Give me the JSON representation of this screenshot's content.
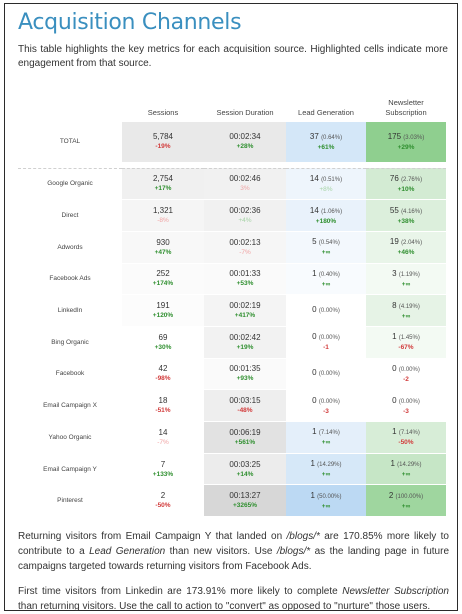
{
  "title": "Acquisition Channels",
  "intro": "This table highlights the key metrics for each acquisition source. Highlighted cells indicate more engagement from that source.",
  "columns": [
    "Sessions",
    "Session Duration",
    "Lead Generation",
    "Newsletter Subscription"
  ],
  "total": {
    "label": "TOTAL",
    "sessions": "5,784",
    "sessions_change": "-19%",
    "duration": "00:02:34",
    "duration_change": "+28%",
    "lead": "37",
    "lead_pct": "(0.64%)",
    "lead_change": "+61%",
    "news": "175",
    "news_pct": "(3.03%)",
    "news_change": "+29%"
  },
  "rows": [
    {
      "label": "Google Organic",
      "sessions": "2,754",
      "s_ch": "+17%",
      "s_cls": "pos",
      "s_bg": "#f0f0f0",
      "duration": "00:02:46",
      "d_ch": "3%",
      "d_cls": "faint-neg",
      "d_bg": "#f1f1f1",
      "lead": "14",
      "lead_pct": "(0.51%)",
      "l_ch": "+8%",
      "l_cls": "faint-pos",
      "l_bg": "#eef5fc",
      "news": "76",
      "news_pct": "(2.76%)",
      "n_ch": "+10%",
      "n_cls": "pos",
      "n_bg": "#d3ebd3"
    },
    {
      "label": "Direct",
      "sessions": "1,321",
      "s_ch": "-8%",
      "s_cls": "faint-neg",
      "s_bg": "#f5f5f5",
      "duration": "00:02:36",
      "d_ch": "+4%",
      "d_cls": "faint-pos",
      "d_bg": "#f1f1f1",
      "lead": "14",
      "lead_pct": "(1.06%)",
      "l_ch": "+180%",
      "l_cls": "pos",
      "l_bg": "#e9f2fb",
      "news": "55",
      "news_pct": "(4.16%)",
      "n_ch": "+38%",
      "n_cls": "pos",
      "n_bg": "#dcefdc"
    },
    {
      "label": "Adwords",
      "sessions": "930",
      "s_ch": "+47%",
      "s_cls": "pos",
      "s_bg": "#f8f8f8",
      "duration": "00:02:13",
      "d_ch": "-7%",
      "d_cls": "faint-neg",
      "d_bg": "#f6f6f6",
      "lead": "5",
      "lead_pct": "(0.54%)",
      "l_ch": "+∞",
      "l_cls": "pos",
      "l_bg": "#f3f8fd",
      "news": "19",
      "news_pct": "(2.04%)",
      "n_ch": "+46%",
      "n_cls": "pos",
      "n_bg": "#e9f5e9"
    },
    {
      "label": "Facebook Ads",
      "sessions": "252",
      "s_ch": "+174%",
      "s_cls": "pos",
      "s_bg": "#fbfbfb",
      "duration": "00:01:33",
      "d_ch": "+53%",
      "d_cls": "pos",
      "d_bg": "#fafafa",
      "lead": "1",
      "lead_pct": "(0.40%)",
      "l_ch": "+∞",
      "l_cls": "pos",
      "l_bg": "#f8fbfe",
      "news": "3",
      "news_pct": "(1.19%)",
      "n_ch": "+∞",
      "n_cls": "pos",
      "n_bg": "#f3faf3"
    },
    {
      "label": "LinkedIn",
      "sessions": "191",
      "s_ch": "+120%",
      "s_cls": "pos",
      "s_bg": "#fcfcfc",
      "duration": "00:02:19",
      "d_ch": "+417%",
      "d_cls": "pos",
      "d_bg": "#f4f4f4",
      "lead": "0",
      "lead_pct": "(0.00%)",
      "l_ch": "",
      "l_cls": "pos",
      "l_bg": "#ffffff",
      "news": "8",
      "news_pct": "(4.19%)",
      "n_ch": "+∞",
      "n_cls": "pos",
      "n_bg": "#e6f3e6"
    },
    {
      "label": "Bing Organic",
      "sessions": "69",
      "s_ch": "+30%",
      "s_cls": "pos",
      "s_bg": "#ffffff",
      "duration": "00:02:42",
      "d_ch": "+19%",
      "d_cls": "pos",
      "d_bg": "#f2f2f2",
      "lead": "0",
      "lead_pct": "(0.00%)",
      "l_ch": "-1",
      "l_cls": "neg",
      "l_bg": "#ffffff",
      "news": "1",
      "news_pct": "(1.45%)",
      "n_ch": "-67%",
      "n_cls": "neg",
      "n_bg": "#f3faf3"
    },
    {
      "label": "Facebook",
      "sessions": "42",
      "s_ch": "-98%",
      "s_cls": "neg",
      "s_bg": "#ffffff",
      "duration": "00:01:35",
      "d_ch": "+93%",
      "d_cls": "pos",
      "d_bg": "#fafafa",
      "lead": "0",
      "lead_pct": "(0.00%)",
      "l_ch": "",
      "l_cls": "pos",
      "l_bg": "#ffffff",
      "news": "0",
      "news_pct": "(0.00%)",
      "n_ch": "-2",
      "n_cls": "neg",
      "n_bg": "#ffffff"
    },
    {
      "label": "Email Campaign X",
      "sessions": "18",
      "s_ch": "-51%",
      "s_cls": "neg",
      "s_bg": "#ffffff",
      "duration": "00:03:15",
      "d_ch": "-48%",
      "d_cls": "neg",
      "d_bg": "#eeeeee",
      "lead": "0",
      "lead_pct": "(0.00%)",
      "l_ch": "-3",
      "l_cls": "neg",
      "l_bg": "#ffffff",
      "news": "0",
      "news_pct": "(0.00%)",
      "n_ch": "-3",
      "n_cls": "neg",
      "n_bg": "#ffffff"
    },
    {
      "label": "Yahoo Organic",
      "sessions": "14",
      "s_ch": "-7%",
      "s_cls": "faint-neg",
      "s_bg": "#ffffff",
      "duration": "00:06:19",
      "d_ch": "+561%",
      "d_cls": "pos",
      "d_bg": "#e2e2e2",
      "lead": "1",
      "lead_pct": "(7.14%)",
      "l_ch": "+∞",
      "l_cls": "pos",
      "l_bg": "#e4effa",
      "news": "1",
      "news_pct": "(7.14%)",
      "n_ch": "-50%",
      "n_cls": "neg",
      "n_bg": "#d7edd7"
    },
    {
      "label": "Email Campaign Y",
      "sessions": "7",
      "s_ch": "+133%",
      "s_cls": "pos",
      "s_bg": "#ffffff",
      "duration": "00:03:25",
      "d_ch": "+14%",
      "d_cls": "pos",
      "d_bg": "#ececec",
      "lead": "1",
      "lead_pct": "(14.29%)",
      "l_ch": "+∞",
      "l_cls": "pos",
      "l_bg": "#d6e8f8",
      "news": "1",
      "news_pct": "(14.29%)",
      "n_ch": "+∞",
      "n_cls": "pos",
      "n_bg": "#c6e6c6"
    },
    {
      "label": "Pinterest",
      "sessions": "2",
      "s_ch": "-50%",
      "s_cls": "neg",
      "s_bg": "#ffffff",
      "duration": "00:13:27",
      "d_ch": "+3265%",
      "d_cls": "pos",
      "d_bg": "#d7d7d7",
      "lead": "1",
      "lead_pct": "(50.00%)",
      "l_ch": "+∞",
      "l_cls": "pos",
      "l_bg": "#bcd9f3",
      "news": "2",
      "news_pct": "(100.00%)",
      "n_ch": "+∞",
      "n_cls": "pos",
      "n_bg": "#9fd69f"
    }
  ],
  "footnote1": {
    "a": "Returning visitors from Email Campaign Y that landed on ",
    "b": "/blogs/*",
    "c": " are 170.85% more likely to contribute to a ",
    "d": "Lead Generation",
    "e": " than new visitors. Use ",
    "f": "/blogs/*",
    "g": " as the landing page in future campaigns targeted towards returning visitors from Facebook Ads."
  },
  "footnote2": {
    "a": "First time visitors from Linkedin are 173.91% more likely to complete ",
    "b": "Newsletter Subscription",
    "c": " than returning visitors. Use the call to action to \"convert\" as opposed to \"nurture\" those users."
  },
  "colors": {
    "title": "#3a8fbf",
    "positive": "#2f8f2f",
    "negative": "#d23b3b"
  }
}
